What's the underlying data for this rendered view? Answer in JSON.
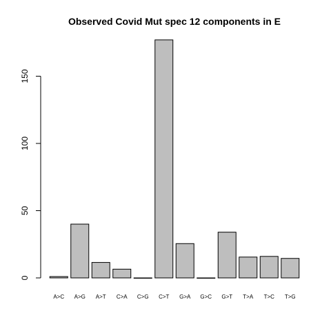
{
  "chart_data": {
    "type": "bar",
    "title": "Observed Covid Mut spec 12 components in E",
    "xlabel": "",
    "ylabel": "",
    "categories": [
      "A>C",
      "A>G",
      "A>T",
      "C>A",
      "C>G",
      "C>T",
      "G>A",
      "G>C",
      "G>T",
      "T>A",
      "T>C",
      "T>G"
    ],
    "values": [
      1,
      40,
      11.5,
      6.5,
      0,
      177,
      25.5,
      0,
      34,
      15.5,
      16,
      14.5
    ],
    "ylim": [
      0,
      180
    ],
    "yticks": [
      0,
      50,
      100,
      150
    ],
    "ytick_labels": [
      "0",
      "50",
      "100",
      "150"
    ],
    "grid": false,
    "bar_color": "#bebebe",
    "edge_color": "#000000"
  }
}
